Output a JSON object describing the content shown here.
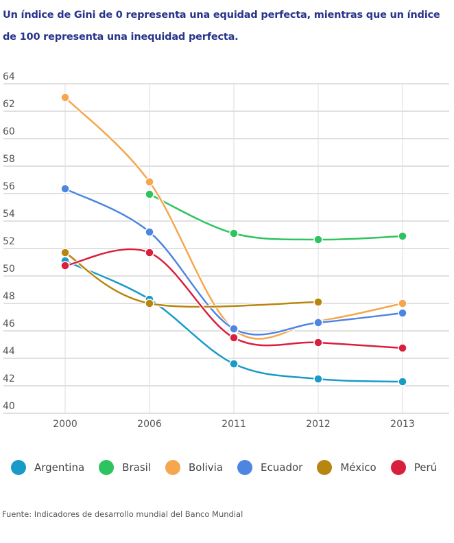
{
  "title": "Un índice de Gini de 0 representa una equidad perfecta, mientras que un índice de 100 representa una inequidad perfecta.",
  "source": "Fuente: Indicadores de desarrollo mundial del Banco Mundial",
  "chart_data": {
    "type": "line",
    "title": "Un índice de Gini de 0 representa una equidad perfecta, mientras que un índice de 100 representa una inequidad perfecta.",
    "xlabel": "",
    "ylabel": "",
    "categories": [
      "2000",
      "2006",
      "2011",
      "2012",
      "2013"
    ],
    "ylim": [
      40,
      64
    ],
    "yticks": [
      40,
      42,
      44,
      46,
      48,
      50,
      52,
      54,
      56,
      58,
      60,
      62,
      64
    ],
    "grid": true,
    "legend": "bottom",
    "series": [
      {
        "name": "Argentina",
        "color": "#1a9bc7",
        "values": [
          51.1,
          48.3,
          43.6,
          42.5,
          42.3
        ]
      },
      {
        "name": "Brasil",
        "color": "#2dc35e",
        "values": [
          null,
          55.95,
          53.1,
          52.65,
          52.9
        ]
      },
      {
        "name": "Bolivia",
        "color": "#f5a64f",
        "values": [
          63.0,
          56.85,
          46.1,
          46.7,
          48.0
        ]
      },
      {
        "name": "Ecuador",
        "color": "#4e85e0",
        "values": [
          56.35,
          53.2,
          46.15,
          46.6,
          47.3
        ]
      },
      {
        "name": "México",
        "color": "#b8860e",
        "values": [
          51.7,
          48.0,
          null,
          48.1,
          null
        ]
      },
      {
        "name": "Perú",
        "color": "#d91f3e",
        "values": [
          50.75,
          51.7,
          45.5,
          45.15,
          44.75
        ]
      }
    ]
  }
}
